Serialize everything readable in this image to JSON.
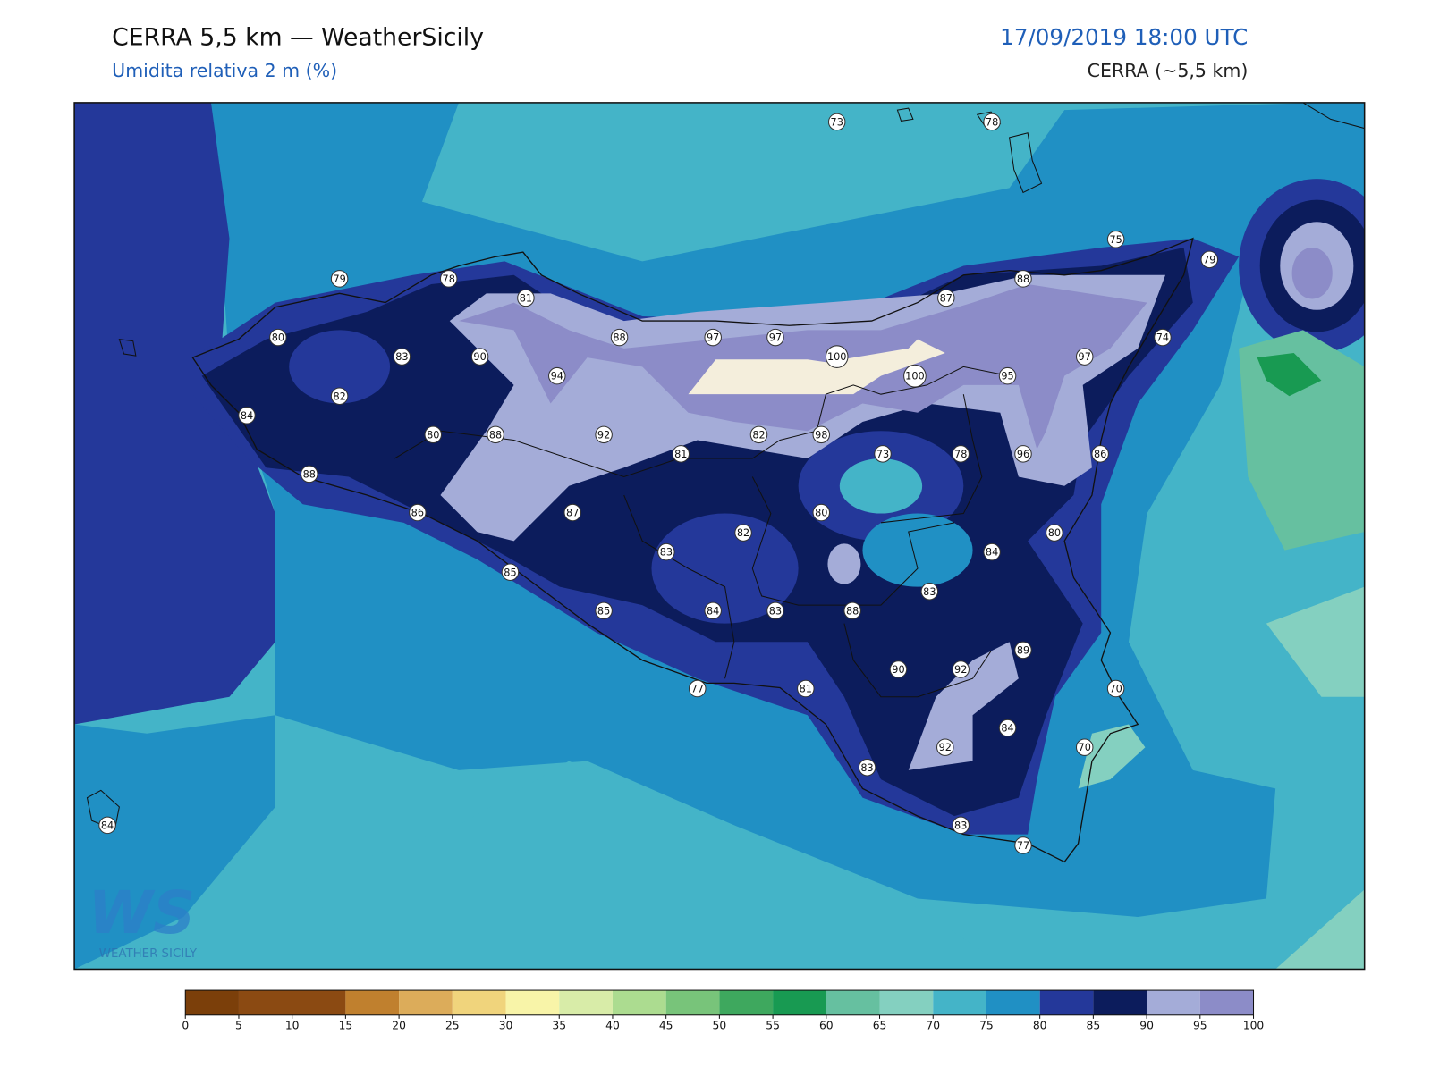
{
  "header": {
    "title": "CERRA 5,5 km — WeatherSicily",
    "subtitle": "Umidita relativa 2 m (%)",
    "datetime": "17/09/2019 18:00 UTC",
    "model": "CERRA (~5,5 km)"
  },
  "logo": {
    "letters": "WS",
    "name": "WEATHER SICILY"
  },
  "stations": [
    73,
    78,
    79,
    78,
    81,
    80,
    83,
    90,
    94,
    82,
    84,
    80,
    88,
    92,
    88,
    97,
    97,
    100,
    100,
    87,
    88,
    75,
    79,
    74,
    97,
    95,
    88,
    81,
    82,
    98,
    73,
    78,
    96,
    86,
    86,
    87,
    80,
    82,
    80,
    83,
    84,
    85,
    85,
    84,
    83,
    88,
    83,
    90,
    92,
    89,
    77,
    81,
    70,
    84,
    70,
    92,
    83,
    83,
    77,
    84
  ],
  "colorbar": {
    "ticks": [
      0,
      5,
      10,
      15,
      20,
      25,
      30,
      35,
      40,
      45,
      50,
      55,
      60,
      65,
      70,
      75,
      80,
      85,
      90,
      95,
      100
    ],
    "colors": [
      "#7b3f0a",
      "#8b4a12",
      "#8b4a12",
      "#c0802e",
      "#dcac5a",
      "#f0d47c",
      "#f8f4a8",
      "#d8eca8",
      "#acdc90",
      "#78c47a",
      "#3ea85e",
      "#189a52",
      "#66c0a0",
      "#84d0c0",
      "#44b4c8",
      "#2090c4",
      "#24389a",
      "#0c1c5c",
      "#a4acd8",
      "#8c8cc8"
    ]
  }
}
